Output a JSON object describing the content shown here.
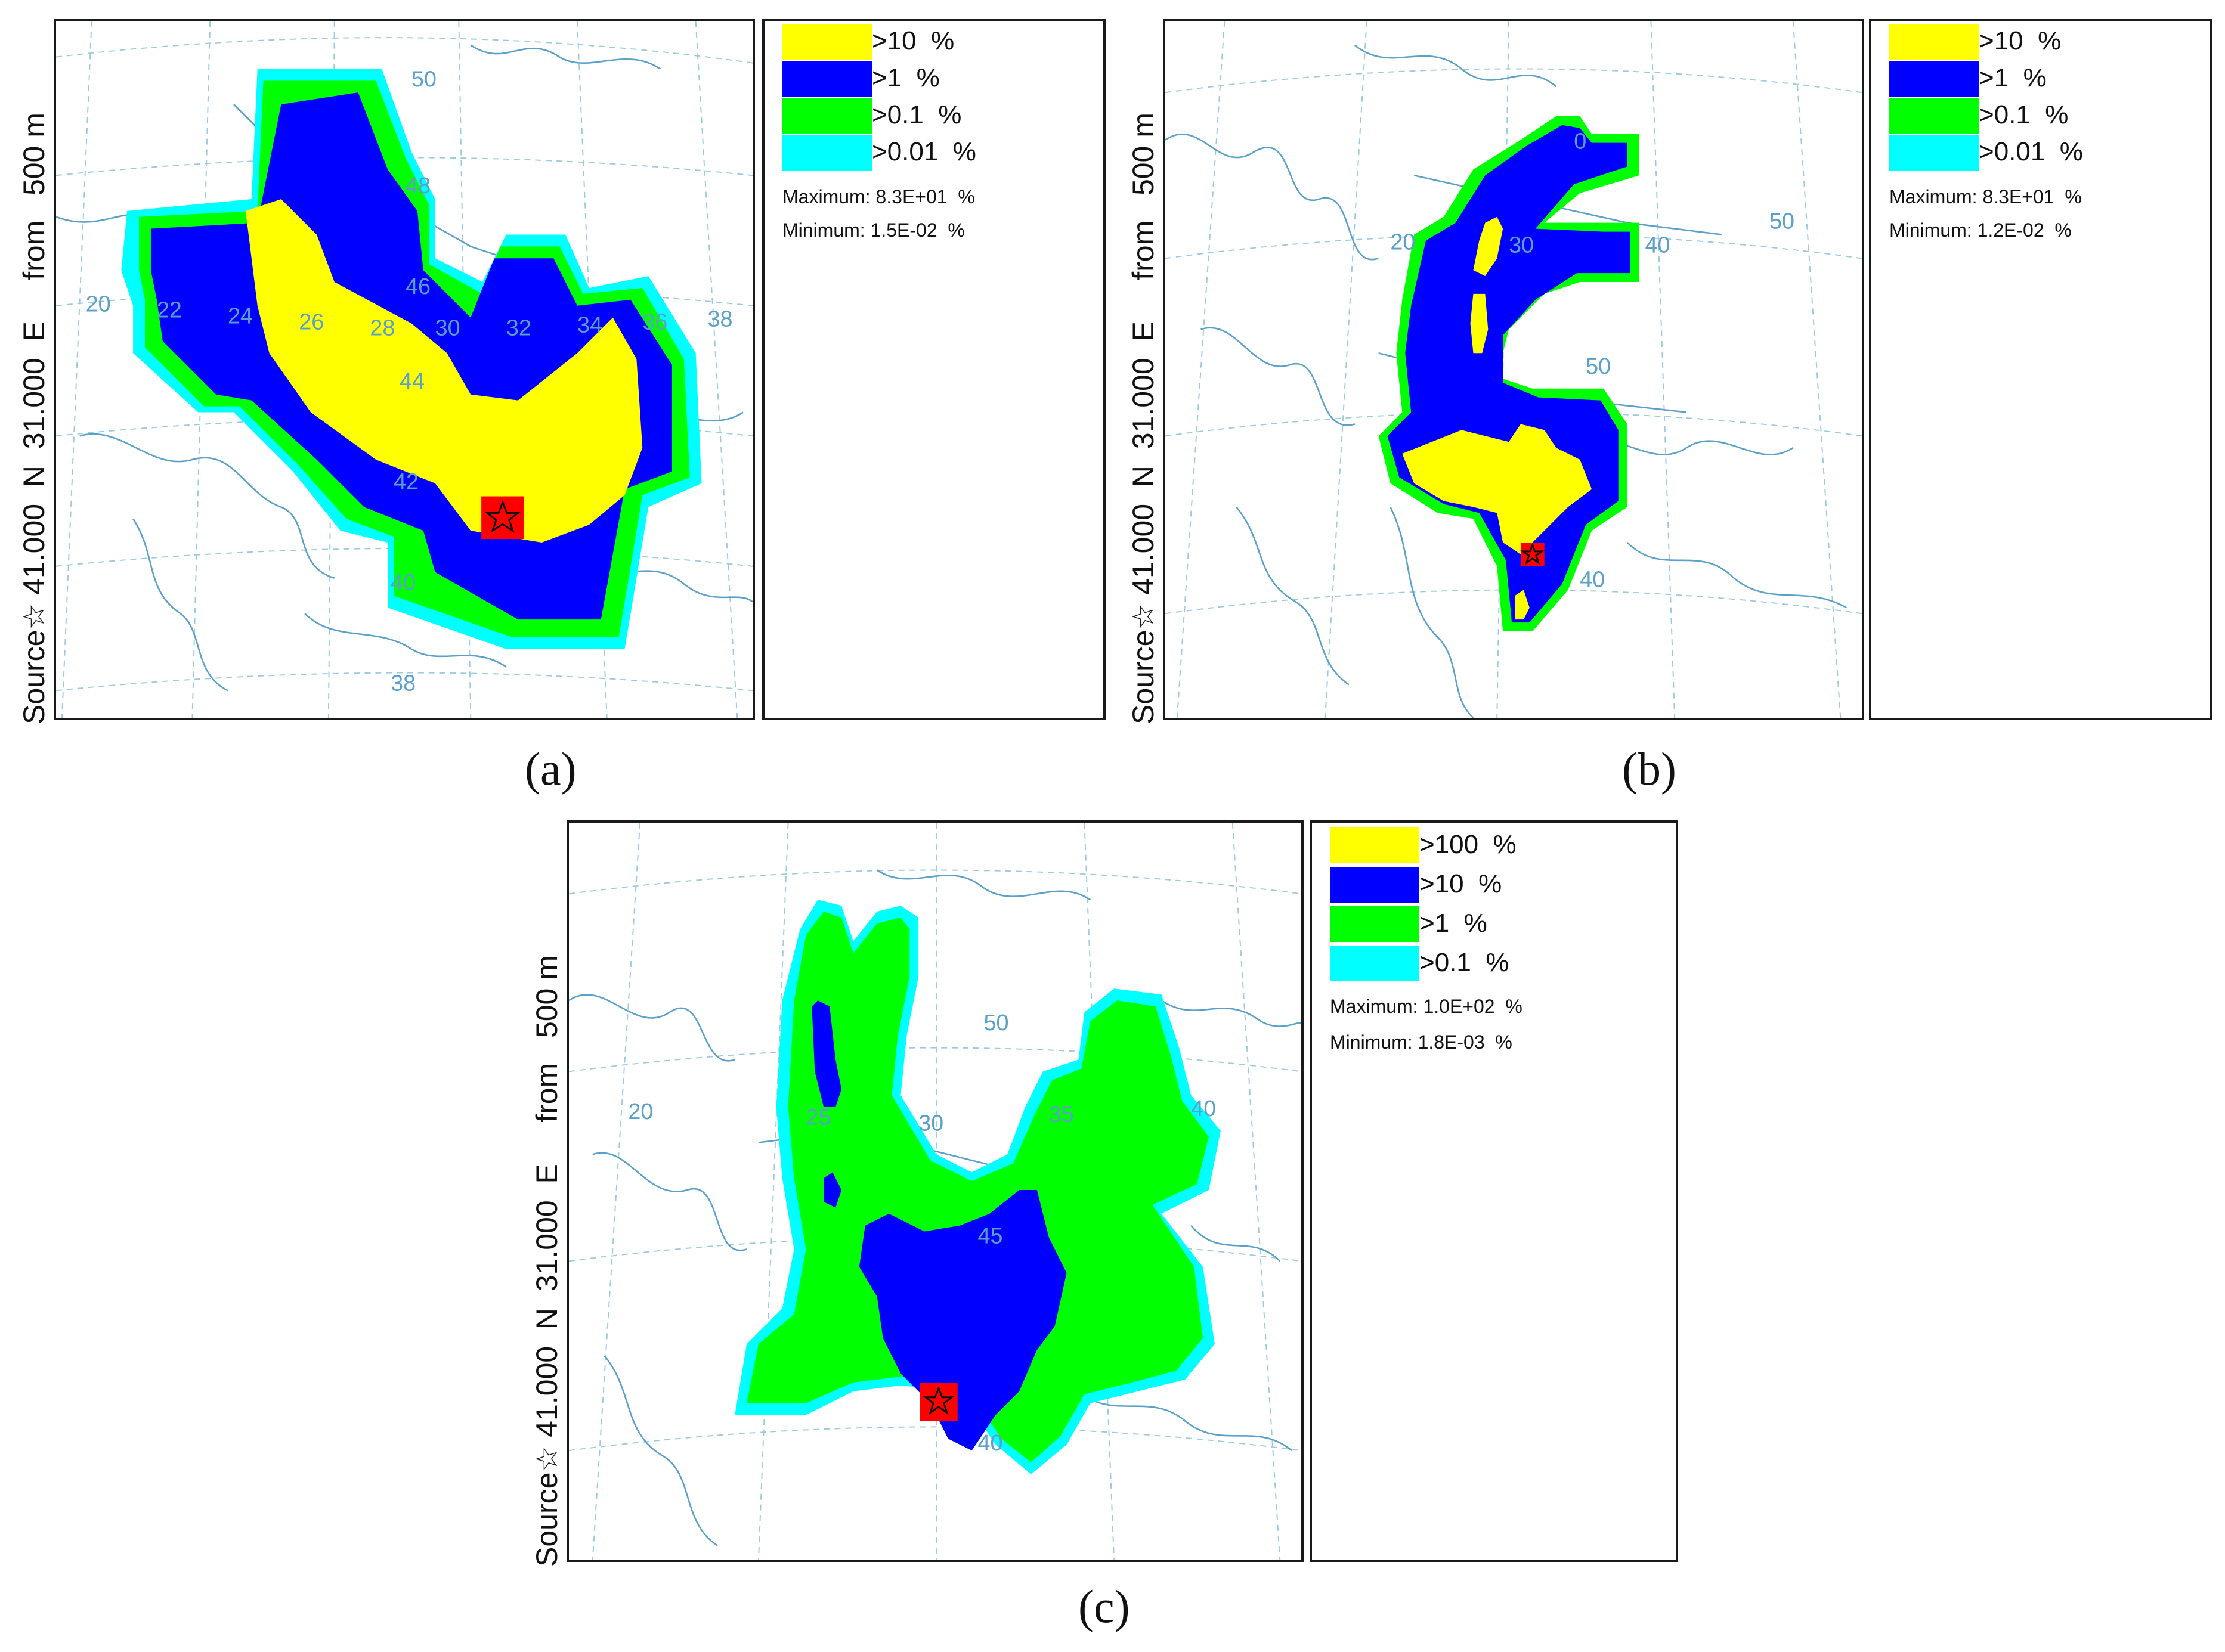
{
  "panels": [
    {
      "id": "a",
      "label": "(a)",
      "side_title": "Source☆ 41.000  N  31.000  E     from   500 m",
      "legend": [
        {
          "label": ">10  %",
          "color": "#ffff00"
        },
        {
          "label": ">1  %",
          "color": "#0000ff"
        },
        {
          "label": ">0.1  %",
          "color": "#00ff00"
        },
        {
          "label": ">0.01  %",
          "color": "#00ffff"
        }
      ],
      "maximum": "Maximum: 8.3E+01  %",
      "minimum": "Minimum: 1.5E-02  %",
      "grid_labels": [
        "50",
        "48",
        "46",
        "44",
        "42",
        "40",
        "38",
        "20",
        "22",
        "24",
        "26",
        "28",
        "30",
        "32",
        "34",
        "36",
        "38"
      ]
    },
    {
      "id": "b",
      "label": "(b)",
      "side_title": "Source☆ 41.000  N  31.000  E     from   500 m",
      "legend": [
        {
          "label": ">10  %",
          "color": "#ffff00"
        },
        {
          "label": ">1  %",
          "color": "#0000ff"
        },
        {
          "label": ">0.1  %",
          "color": "#00ff00"
        },
        {
          "label": ">0.01  %",
          "color": "#00ffff"
        }
      ],
      "maximum": "Maximum: 8.3E+01  %",
      "minimum": "Minimum: 1.2E-02  %",
      "grid_labels": [
        "0",
        "20",
        "30",
        "40",
        "50",
        "50",
        "40"
      ]
    },
    {
      "id": "c",
      "label": "(c)",
      "side_title": "Source☆ 41.000  N  31.000  E     from   500 m",
      "legend": [
        {
          "label": ">100  %",
          "color": "#ffff00"
        },
        {
          "label": ">10  %",
          "color": "#0000ff"
        },
        {
          "label": ">1  %",
          "color": "#00ff00"
        },
        {
          "label": ">0.1  %",
          "color": "#00ffff"
        }
      ],
      "maximum": "Maximum: 1.0E+02  %",
      "minimum": "Minimum: 1.8E-03  %",
      "grid_labels": [
        "50",
        "20",
        "25",
        "30",
        "35",
        "40",
        "45",
        "40"
      ]
    }
  ],
  "colors": {
    "yellow": "#ffff00",
    "blue": "#0000ff",
    "green": "#00ff00",
    "cyan": "#00ffff",
    "source": "#ff0000",
    "coastline": "#5aa0c8"
  }
}
